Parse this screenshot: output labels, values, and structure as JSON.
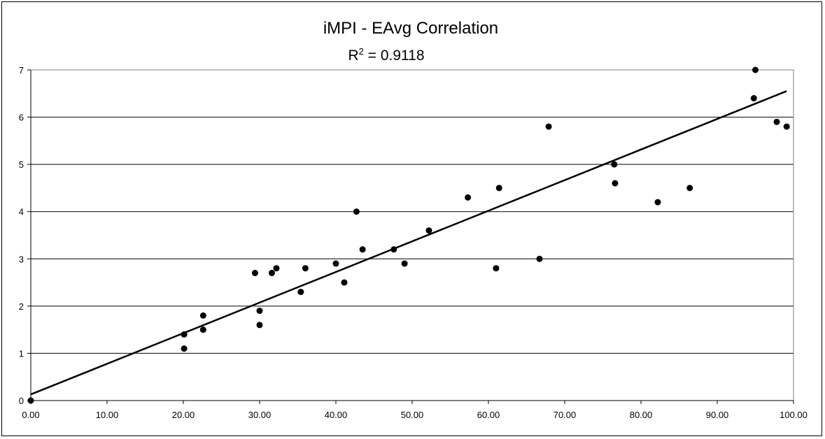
{
  "chart_data": {
    "type": "scatter",
    "title": "iMPI - EAvg Correlation",
    "r_squared_label": "R",
    "r_squared_exponent": "2",
    "r_squared_value": " = 0.9118",
    "xlim": [
      0,
      100
    ],
    "ylim": [
      0,
      7
    ],
    "x_ticks": [
      "0.00",
      "10.00",
      "20.00",
      "30.00",
      "40.00",
      "50.00",
      "60.00",
      "70.00",
      "80.00",
      "90.00",
      "100.00"
    ],
    "y_ticks": [
      "0",
      "1",
      "2",
      "3",
      "4",
      "5",
      "6",
      "7"
    ],
    "grid": "horizontal",
    "legend": "none",
    "trendline": {
      "type": "linear",
      "intercept": 0.13,
      "slope": 0.0648
    },
    "points": [
      {
        "x": 0.0,
        "y": 0.0
      },
      {
        "x": 20.1,
        "y": 1.4
      },
      {
        "x": 20.1,
        "y": 1.1
      },
      {
        "x": 22.6,
        "y": 1.8
      },
      {
        "x": 22.6,
        "y": 1.5
      },
      {
        "x": 29.4,
        "y": 2.7
      },
      {
        "x": 30.0,
        "y": 1.9
      },
      {
        "x": 30.0,
        "y": 1.6
      },
      {
        "x": 31.6,
        "y": 2.7
      },
      {
        "x": 32.2,
        "y": 2.8
      },
      {
        "x": 35.4,
        "y": 2.3
      },
      {
        "x": 36.0,
        "y": 2.8
      },
      {
        "x": 40.0,
        "y": 2.9
      },
      {
        "x": 41.1,
        "y": 2.5
      },
      {
        "x": 42.7,
        "y": 4.0
      },
      {
        "x": 43.5,
        "y": 3.2
      },
      {
        "x": 47.6,
        "y": 3.2
      },
      {
        "x": 49.0,
        "y": 2.9
      },
      {
        "x": 52.2,
        "y": 3.6
      },
      {
        "x": 57.3,
        "y": 4.3
      },
      {
        "x": 61.0,
        "y": 2.8
      },
      {
        "x": 61.4,
        "y": 4.5
      },
      {
        "x": 66.7,
        "y": 3.0
      },
      {
        "x": 67.9,
        "y": 5.8
      },
      {
        "x": 76.5,
        "y": 5.0
      },
      {
        "x": 76.6,
        "y": 4.6
      },
      {
        "x": 82.2,
        "y": 4.2
      },
      {
        "x": 86.4,
        "y": 4.5
      },
      {
        "x": 94.8,
        "y": 6.4
      },
      {
        "x": 95.0,
        "y": 7.0
      },
      {
        "x": 97.8,
        "y": 5.9
      },
      {
        "x": 99.1,
        "y": 5.8
      }
    ],
    "colors": {
      "points": "#000000",
      "line": "#000000",
      "grid": "#000000",
      "plot_border": "#808080"
    }
  }
}
